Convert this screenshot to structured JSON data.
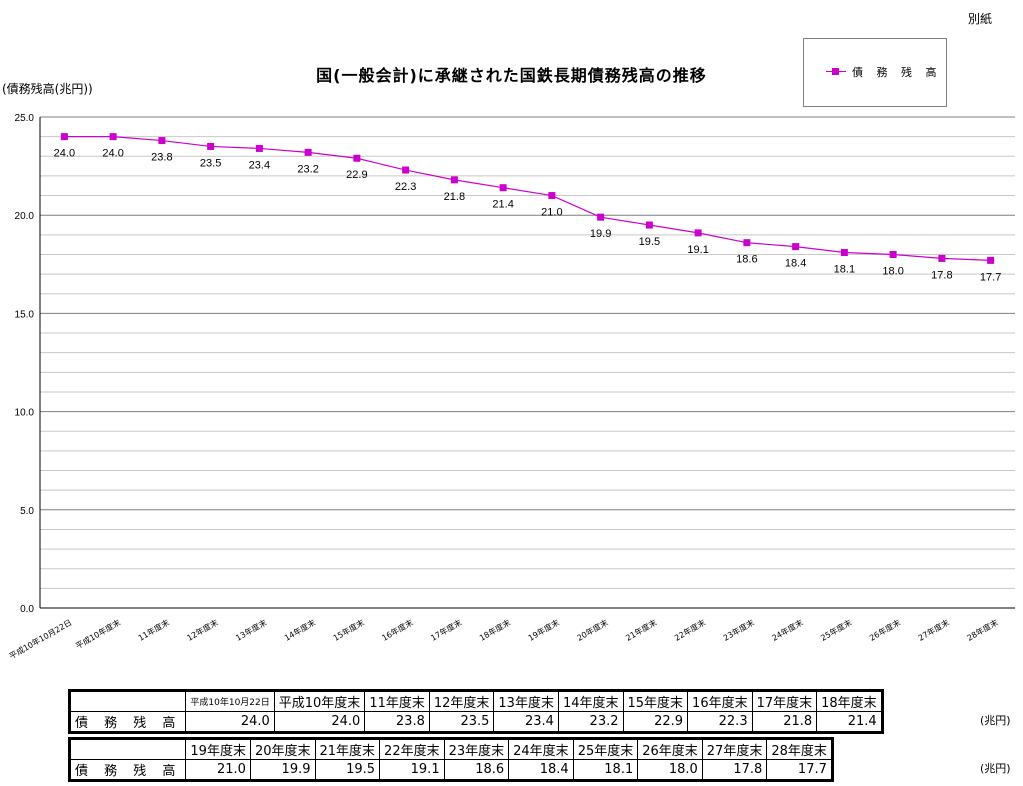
{
  "corner_note": "別紙",
  "chart_data": {
    "type": "line",
    "title": "国(一般会計)に承継された国鉄長期債務残高の推移",
    "ylabel": "(債務残高(兆円))",
    "ylim": [
      0,
      25
    ],
    "y_ticks": [
      "0.0",
      "5.0",
      "10.0",
      "15.0",
      "20.0",
      "25.0"
    ],
    "grid": true,
    "legend_position": "top-right",
    "categories": [
      "平成10年10月22日",
      "平成10年度末",
      "11年度末",
      "12年度末",
      "13年度末",
      "14年度末",
      "15年度末",
      "16年度末",
      "17年度末",
      "18年度末",
      "19年度末",
      "20年度末",
      "21年度末",
      "22年度末",
      "23年度末",
      "24年度末",
      "25年度末",
      "26年度末",
      "27年度末",
      "28年度末"
    ],
    "series": [
      {
        "name": "債 務 残 高",
        "color": "#cc00cc",
        "values": [
          24.0,
          24.0,
          23.8,
          23.5,
          23.4,
          23.2,
          22.9,
          22.3,
          21.8,
          21.4,
          21.0,
          19.9,
          19.5,
          19.1,
          18.6,
          18.4,
          18.1,
          18.0,
          17.8,
          17.7
        ],
        "labels": [
          "24.0",
          "24.0",
          "23.8",
          "23.5",
          "23.4",
          "23.2",
          "22.9",
          "22.3",
          "21.8",
          "21.4",
          "21.0",
          "19.9",
          "19.5",
          "19.1",
          "18.6",
          "18.4",
          "18.1",
          "18.0",
          "17.8",
          "17.7"
        ]
      }
    ]
  },
  "tables": {
    "row_label": "債 務 残 高",
    "unit": "(兆円)",
    "table1": {
      "headers": [
        "平成10年10月22日",
        "平成10年度末",
        "11年度末",
        "12年度末",
        "13年度末",
        "14年度末",
        "15年度末",
        "16年度末",
        "17年度末",
        "18年度末"
      ],
      "values": [
        "24.0",
        "24.0",
        "23.8",
        "23.5",
        "23.4",
        "23.2",
        "22.9",
        "22.3",
        "21.8",
        "21.4"
      ]
    },
    "table2": {
      "headers": [
        "19年度末",
        "20年度末",
        "21年度末",
        "22年度末",
        "23年度末",
        "24年度末",
        "25年度末",
        "26年度末",
        "27年度末",
        "28年度末"
      ],
      "values": [
        "21.0",
        "19.9",
        "19.5",
        "19.1",
        "18.6",
        "18.4",
        "18.1",
        "18.0",
        "17.8",
        "17.7"
      ]
    }
  }
}
